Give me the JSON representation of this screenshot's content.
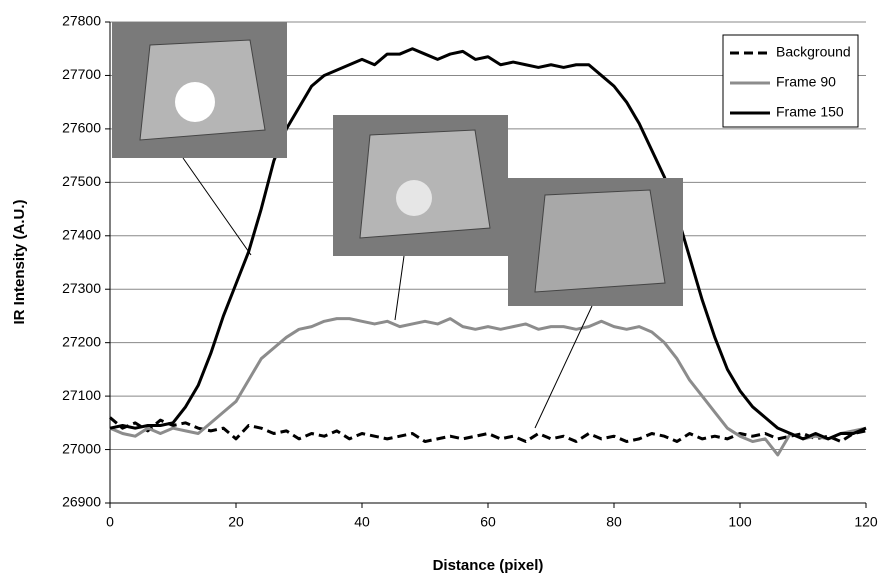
{
  "chart_data": {
    "type": "line",
    "xlabel": "Distance (pixel)",
    "ylabel": "IR Intensity (A.U.)",
    "x": [
      0,
      2,
      4,
      6,
      8,
      10,
      12,
      14,
      16,
      18,
      20,
      22,
      24,
      26,
      28,
      30,
      32,
      34,
      36,
      38,
      40,
      42,
      44,
      46,
      48,
      50,
      52,
      54,
      56,
      58,
      60,
      62,
      64,
      66,
      68,
      70,
      72,
      74,
      76,
      78,
      80,
      82,
      84,
      86,
      88,
      90,
      92,
      94,
      96,
      98,
      100,
      102,
      104,
      106,
      108,
      110,
      112,
      114,
      116,
      118,
      120
    ],
    "series": [
      {
        "name": "Background",
        "color": "#000000",
        "style": "dashed",
        "values": [
          27060,
          27040,
          27050,
          27035,
          27055,
          27045,
          27050,
          27040,
          27035,
          27040,
          27020,
          27045,
          27040,
          27030,
          27035,
          27020,
          27030,
          27025,
          27035,
          27020,
          27030,
          27025,
          27020,
          27025,
          27030,
          27015,
          27020,
          27025,
          27020,
          27025,
          27030,
          27020,
          27025,
          27015,
          27030,
          27020,
          27025,
          27015,
          27030,
          27020,
          27025,
          27015,
          27020,
          27030,
          27025,
          27015,
          27030,
          27020,
          27025,
          27020,
          27030,
          27025,
          27030,
          27020,
          27025,
          27030,
          27020,
          27025,
          27015,
          27030,
          27035
        ]
      },
      {
        "name": "Frame 90",
        "color": "#8c8c8c",
        "style": "solid",
        "values": [
          27040,
          27030,
          27025,
          27040,
          27030,
          27040,
          27035,
          27030,
          27050,
          27070,
          27090,
          27130,
          27170,
          27190,
          27210,
          27225,
          27230,
          27240,
          27245,
          27245,
          27240,
          27235,
          27240,
          27230,
          27235,
          27240,
          27235,
          27245,
          27230,
          27225,
          27230,
          27225,
          27230,
          27235,
          27225,
          27230,
          27230,
          27225,
          27230,
          27240,
          27230,
          27225,
          27230,
          27220,
          27200,
          27170,
          27130,
          27100,
          27070,
          27040,
          27025,
          27015,
          27020,
          26990,
          27030,
          27020,
          27025,
          27020,
          27030,
          27035,
          27040
        ]
      },
      {
        "name": "Frame 150",
        "color": "#000000",
        "style": "solid",
        "values": [
          27040,
          27045,
          27040,
          27045,
          27045,
          27050,
          27080,
          27120,
          27180,
          27250,
          27310,
          27370,
          27450,
          27540,
          27600,
          27640,
          27680,
          27700,
          27710,
          27720,
          27730,
          27720,
          27740,
          27740,
          27750,
          27740,
          27730,
          27740,
          27745,
          27730,
          27735,
          27720,
          27725,
          27720,
          27715,
          27720,
          27715,
          27720,
          27720,
          27700,
          27680,
          27650,
          27610,
          27560,
          27510,
          27440,
          27360,
          27280,
          27210,
          27150,
          27110,
          27080,
          27060,
          27040,
          27030,
          27020,
          27030,
          27020,
          27030,
          27030,
          27040
        ]
      }
    ],
    "xlim": [
      0,
      120
    ],
    "xticks": [
      0,
      20,
      40,
      60,
      80,
      100,
      120
    ],
    "ylim": [
      26900,
      27800
    ],
    "yticks": [
      26900,
      27000,
      27100,
      27200,
      27300,
      27400,
      27500,
      27600,
      27700,
      27800
    ],
    "grid": true,
    "legend": "upper right"
  }
}
